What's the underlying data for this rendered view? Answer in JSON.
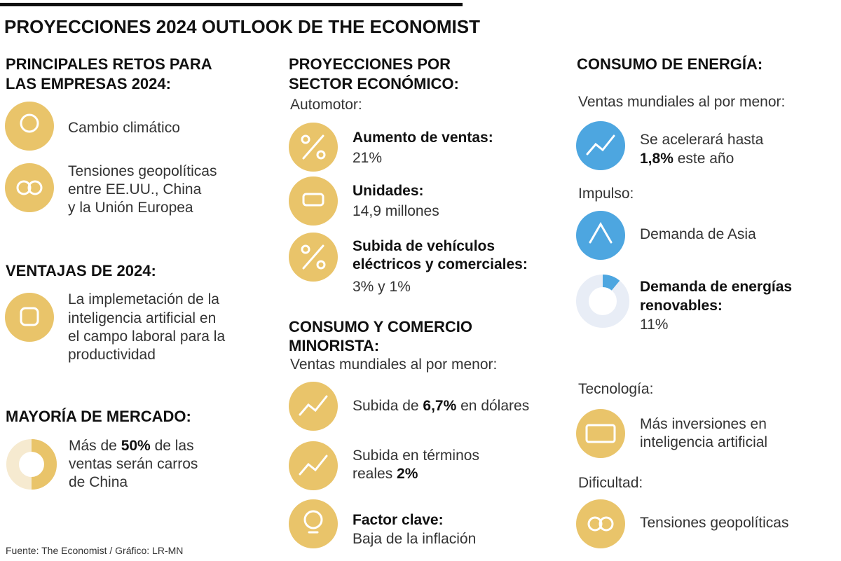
{
  "title": "PROYECCIONES 2024 OUTLOOK DE THE ECONOMIST",
  "retos": {
    "heading": [
      "PRINCIPALES RETOS PARA",
      "LAS EMPRESAS 2024:"
    ],
    "items": [
      {
        "lines": [
          "Cambio climático"
        ]
      },
      {
        "lines": [
          "Tensiones geopolíticas",
          "entre EE.UU., China",
          "y la Unión Europea"
        ]
      }
    ]
  },
  "ventajas": {
    "heading": "VENTAJAS DE 2024:",
    "lines": [
      "La implemetación de la",
      "inteligencia artificial en",
      "el campo laboral para la",
      "productividad"
    ]
  },
  "mercado": {
    "heading": "MAYORÍA DE MERCADO:",
    "share": 50,
    "lines": [
      [
        "Más de ",
        "50%",
        " de las"
      ],
      [
        "ventas serán carros"
      ],
      [
        "de China"
      ]
    ]
  },
  "sector": {
    "heading": [
      "PROYECCIONES POR",
      "SECTOR ECONÓMICO:"
    ],
    "subheading": "Automotor:",
    "items": [
      {
        "label": [
          "Aumento de ventas:"
        ],
        "value": "21%"
      },
      {
        "label": [
          "Unidades:"
        ],
        "value": "14,9 millones"
      },
      {
        "label": [
          "Subida de vehículos",
          "eléctricos y comerciales:"
        ],
        "value": "3% y 1%"
      }
    ]
  },
  "consumo": {
    "heading": [
      "CONSUMO Y COMERCIO",
      "MINORISTA:"
    ],
    "subheading": "Ventas mundiales al por menor:",
    "items": [
      {
        "lines": [
          [
            "Subida de ",
            "6,7%",
            " en dólares"
          ]
        ]
      },
      {
        "lines": [
          [
            "Subida en términos"
          ],
          [
            "reales ",
            "2%"
          ]
        ]
      },
      {
        "label": "Factor clave:",
        "value": "Baja de la inflación"
      }
    ]
  },
  "energia": {
    "heading": "CONSUMO DE ENERGÍA:",
    "subheading": "Ventas mundiales al por menor:",
    "ventas": [
      [
        "Se acelerará hasta"
      ],
      [
        "1,8%",
        " este año"
      ]
    ],
    "impulso_heading": "Impulso:",
    "impulso": "Demanda de Asia",
    "renovables": {
      "label": [
        "Demanda de energías",
        "renovables:"
      ],
      "share": 11,
      "value_label": "11%"
    },
    "tecnologia_heading": "Tecnología:",
    "tecnologia": [
      "Más inversiones en",
      "inteligencia artificial"
    ],
    "dificultad_heading": "Dificultad:",
    "dificultad": "Tensiones geopolíticas"
  },
  "source": "Fuente: The Economist / Gráfico: LR-MN"
}
